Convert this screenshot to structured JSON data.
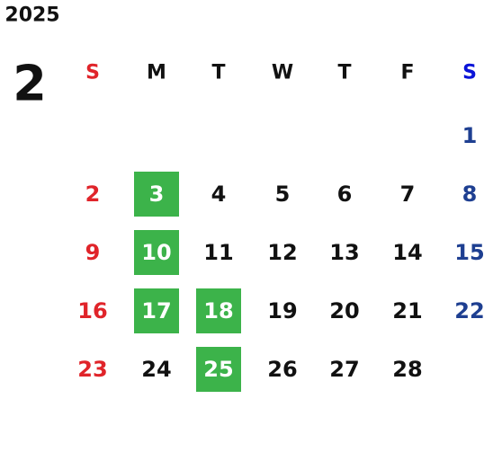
{
  "year": "2025",
  "month": "2",
  "weekdays": [
    "S",
    "M",
    "T",
    "W",
    "T",
    "F",
    "S"
  ],
  "weeks": [
    [
      null,
      null,
      null,
      null,
      null,
      null,
      {
        "label": "1"
      }
    ],
    [
      {
        "label": "2"
      },
      {
        "label": "3",
        "marked": true
      },
      {
        "label": "4"
      },
      {
        "label": "5"
      },
      {
        "label": "6"
      },
      {
        "label": "7"
      },
      {
        "label": "8"
      }
    ],
    [
      {
        "label": "9"
      },
      {
        "label": "10",
        "marked": true
      },
      {
        "label": "11"
      },
      {
        "label": "12"
      },
      {
        "label": "13"
      },
      {
        "label": "14"
      },
      {
        "label": "15"
      }
    ],
    [
      {
        "label": "16"
      },
      {
        "label": "17",
        "marked": true
      },
      {
        "label": "18",
        "marked": true
      },
      {
        "label": "19"
      },
      {
        "label": "20"
      },
      {
        "label": "21"
      },
      {
        "label": "22"
      }
    ],
    [
      {
        "label": "23"
      },
      {
        "label": "24"
      },
      {
        "label": "25",
        "marked": true
      },
      {
        "label": "26"
      },
      {
        "label": "27"
      },
      {
        "label": "28"
      },
      null
    ]
  ]
}
